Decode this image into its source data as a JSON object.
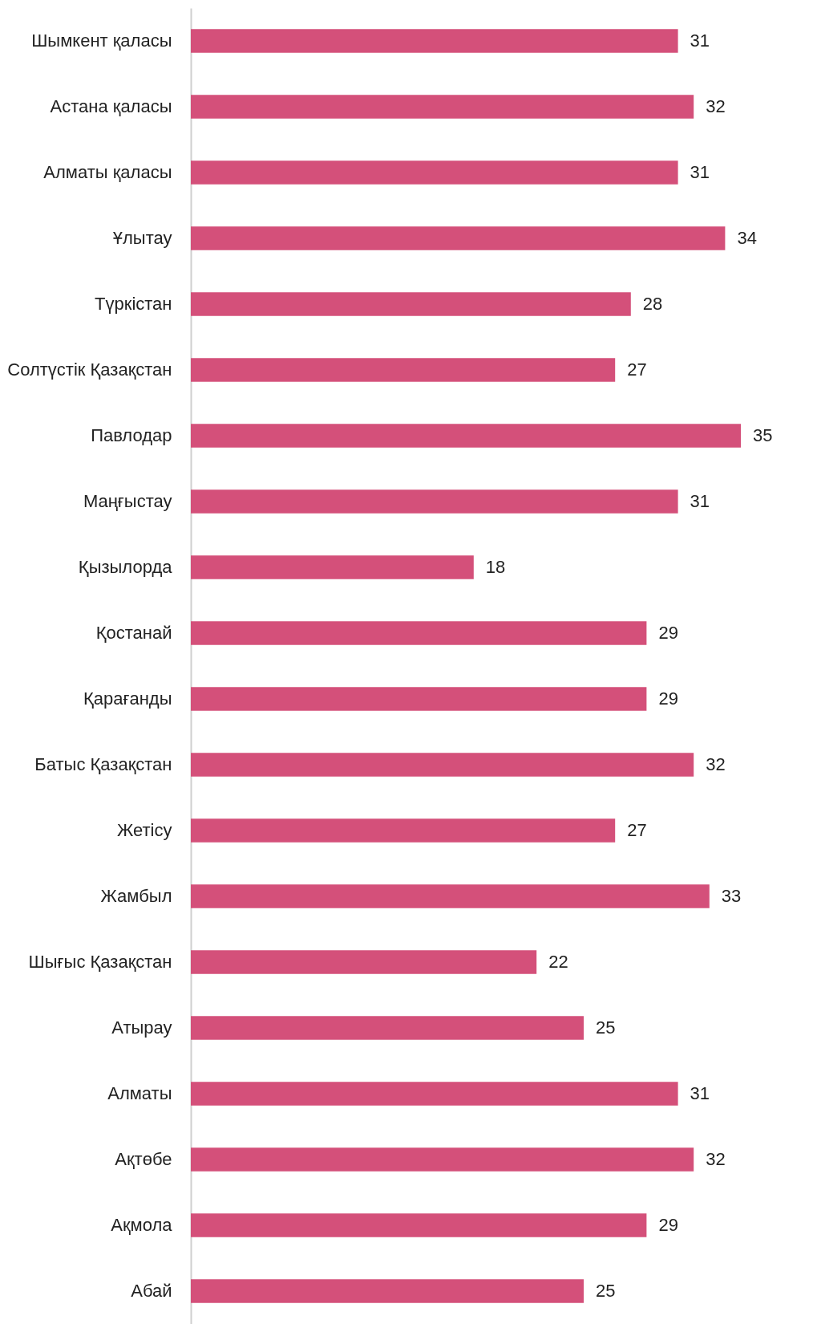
{
  "chart_data": {
    "type": "bar",
    "orientation": "horizontal",
    "data_labels": true,
    "categories": [
      "Шымкент қаласы",
      "Астана қаласы",
      "Алматы қаласы",
      "Ұлытау",
      "Түркістан",
      "Солтүстік Қазақстан",
      "Павлодар",
      "Маңғыстау",
      "Қызылорда",
      "Қостанай",
      "Қарағанды",
      "Батыс Қазақстан",
      "Жетісу",
      "Жамбыл",
      "Шығыс Қазақстан",
      "Атырау",
      "Алматы",
      "Ақтөбе",
      "Ақмола",
      "Абай"
    ],
    "values": [
      31,
      32,
      31,
      34,
      28,
      27,
      35,
      31,
      18,
      29,
      29,
      32,
      27,
      33,
      22,
      25,
      31,
      32,
      29,
      25
    ],
    "color": "#d4507a"
  }
}
